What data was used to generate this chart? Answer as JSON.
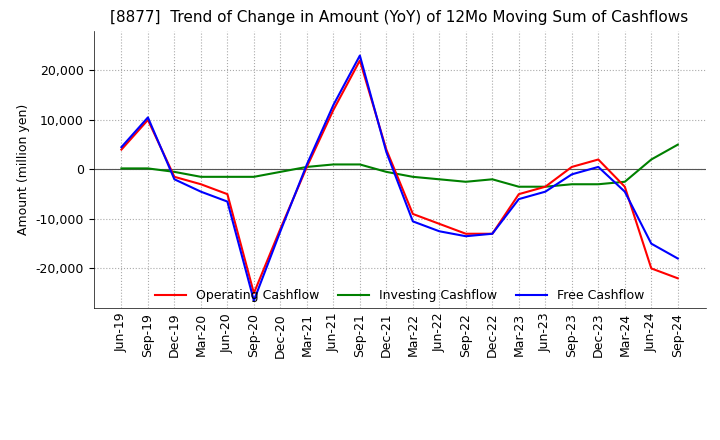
{
  "title": "[8877]  Trend of Change in Amount (YoY) of 12Mo Moving Sum of Cashflows",
  "ylabel": "Amount (million yen)",
  "title_fontsize": 11,
  "label_fontsize": 9,
  "tick_fontsize": 9,
  "background_color": "#ffffff",
  "grid_color": "#aaaaaa",
  "x_labels": [
    "Jun-19",
    "Sep-19",
    "Dec-19",
    "Mar-20",
    "Jun-20",
    "Sep-20",
    "Dec-20",
    "Mar-21",
    "Jun-21",
    "Sep-21",
    "Dec-21",
    "Mar-22",
    "Jun-22",
    "Sep-22",
    "Dec-22",
    "Mar-23",
    "Jun-23",
    "Sep-23",
    "Dec-23",
    "Mar-24",
    "Jun-24",
    "Sep-24"
  ],
  "operating_cashflow": [
    4000,
    10000,
    -1500,
    -3000,
    -5000,
    -25000,
    -12000,
    500,
    12000,
    22000,
    4000,
    -9000,
    -11000,
    -13000,
    -13000,
    -5000,
    -3500,
    500,
    2000,
    -3500,
    -20000,
    -22000
  ],
  "investing_cashflow": [
    200,
    200,
    -500,
    -1500,
    -1500,
    -1500,
    -500,
    500,
    1000,
    1000,
    -500,
    -1500,
    -2000,
    -2500,
    -2000,
    -3500,
    -3500,
    -3000,
    -3000,
    -2500,
    2000,
    5000
  ],
  "free_cashflow": [
    4500,
    10500,
    -2000,
    -4500,
    -6500,
    -26500,
    -12500,
    1000,
    13000,
    23000,
    3500,
    -10500,
    -12500,
    -13500,
    -13000,
    -6000,
    -4500,
    -1000,
    500,
    -4500,
    -15000,
    -18000
  ],
  "ylim": [
    -28000,
    28000
  ],
  "yticks": [
    -20000,
    -10000,
    0,
    10000,
    20000
  ],
  "operating_color": "#ff0000",
  "investing_color": "#008000",
  "free_color": "#0000ff",
  "line_width": 1.5
}
